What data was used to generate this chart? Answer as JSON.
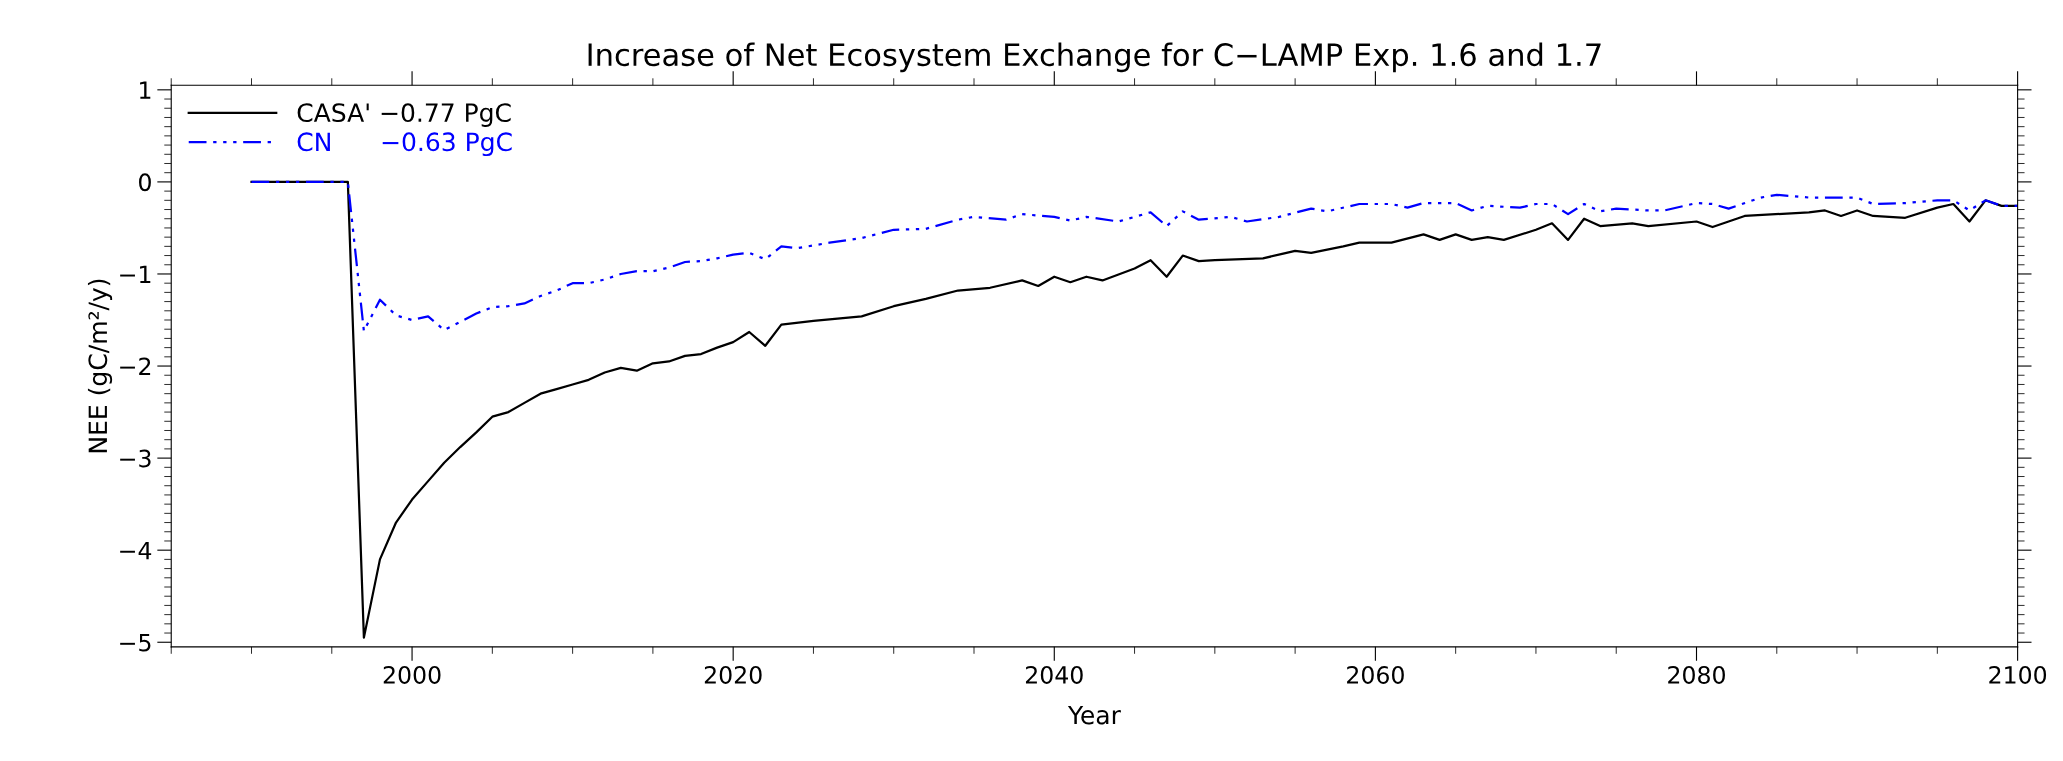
{
  "chart_data": {
    "type": "line",
    "title": "Increase of Net Ecosystem Exchange for C−LAMP Exp. 1.6 and 1.7",
    "xlabel": "Year",
    "ylabel": "NEE (gC/m²/y)",
    "xlim": [
      1985,
      2100
    ],
    "xticks": [
      2000,
      2020,
      2040,
      2060,
      2080,
      2100
    ],
    "ylim": [
      -5.05,
      1.05
    ],
    "yticks": [
      {
        "value": -5,
        "label": "−5"
      },
      {
        "value": -4,
        "label": "−4"
      },
      {
        "value": -3,
        "label": "−3"
      },
      {
        "value": -2,
        "label": "−2"
      },
      {
        "value": -1,
        "label": "−1"
      },
      0,
      1
    ],
    "grid": false,
    "legend": "top left",
    "marker": "none",
    "series": [
      {
        "name": "CASA' −0.77 PgC",
        "color": "#000000",
        "line_style": "solid",
        "x": [
          1990,
          1996,
          1997,
          1998,
          1999,
          2000,
          2001,
          2002,
          2003,
          2004,
          2005,
          2006,
          2007,
          2008,
          2009,
          2010,
          2011,
          2012,
          2013,
          2014,
          2015,
          2016,
          2017,
          2018,
          2019,
          2020,
          2021,
          2022,
          2023,
          2025,
          2028,
          2030,
          2032,
          2034,
          2036,
          2038,
          2039,
          2040,
          2041,
          2042,
          2043,
          2045,
          2046,
          2047,
          2048,
          2049,
          2050,
          2053,
          2055,
          2056,
          2058,
          2059,
          2061,
          2063,
          2064,
          2065,
          2066,
          2067,
          2068,
          2070,
          2071,
          2072,
          2073,
          2074,
          2076,
          2077,
          2080,
          2081,
          2083,
          2087,
          2088,
          2089,
          2090,
          2091,
          2093,
          2095,
          2096,
          2097,
          2098,
          2099,
          2100
        ],
        "values": [
          0,
          0,
          -4.95,
          -4.1,
          -3.7,
          -3.45,
          -3.25,
          -3.05,
          -2.88,
          -2.72,
          -2.55,
          -2.5,
          -2.4,
          -2.3,
          -2.25,
          -2.2,
          -2.15,
          -2.07,
          -2.02,
          -2.05,
          -1.97,
          -1.95,
          -1.89,
          -1.87,
          -1.8,
          -1.74,
          -1.63,
          -1.78,
          -1.55,
          -1.51,
          -1.46,
          -1.35,
          -1.27,
          -1.18,
          -1.15,
          -1.07,
          -1.13,
          -1.03,
          -1.09,
          -1.03,
          -1.07,
          -0.94,
          -0.85,
          -1.03,
          -0.8,
          -0.86,
          -0.85,
          -0.83,
          -0.75,
          -0.77,
          -0.7,
          -0.66,
          -0.66,
          -0.57,
          -0.63,
          -0.57,
          -0.63,
          -0.6,
          -0.63,
          -0.52,
          -0.45,
          -0.63,
          -0.4,
          -0.48,
          -0.45,
          -0.48,
          -0.43,
          -0.49,
          -0.37,
          -0.33,
          -0.31,
          -0.37,
          -0.31,
          -0.37,
          -0.39,
          -0.28,
          -0.24,
          -0.43,
          -0.2,
          -0.26,
          -0.26
        ]
      },
      {
        "name": "CN      −0.63 PgC",
        "color": "#0000ff",
        "line_style": "dashdot",
        "x": [
          1990,
          1996,
          1997,
          1998,
          1999,
          2000,
          2001,
          2002,
          2003,
          2004,
          2005,
          2006,
          2007,
          2008,
          2009,
          2010,
          2011,
          2012,
          2013,
          2014,
          2015,
          2016,
          2017,
          2018,
          2019,
          2020,
          2021,
          2022,
          2023,
          2024,
          2026,
          2028,
          2030,
          2032,
          2034,
          2035,
          2037,
          2038,
          2040,
          2041,
          2042,
          2044,
          2046,
          2047,
          2048,
          2049,
          2051,
          2052,
          2054,
          2056,
          2057,
          2059,
          2061,
          2062,
          2063,
          2065,
          2066,
          2067,
          2069,
          2070,
          2071,
          2072,
          2073,
          2074,
          2075,
          2077,
          2078,
          2080,
          2081,
          2082,
          2084,
          2085,
          2087,
          2088,
          2090,
          2091,
          2093,
          2095,
          2096,
          2097,
          2098,
          2099,
          2100
        ],
        "values": [
          0,
          0,
          -1.62,
          -1.28,
          -1.45,
          -1.5,
          -1.46,
          -1.61,
          -1.52,
          -1.43,
          -1.36,
          -1.35,
          -1.32,
          -1.24,
          -1.18,
          -1.1,
          -1.1,
          -1.06,
          -1.0,
          -0.97,
          -0.97,
          -0.93,
          -0.87,
          -0.86,
          -0.83,
          -0.79,
          -0.77,
          -0.84,
          -0.7,
          -0.72,
          -0.66,
          -0.61,
          -0.52,
          -0.51,
          -0.41,
          -0.38,
          -0.41,
          -0.35,
          -0.38,
          -0.42,
          -0.38,
          -0.43,
          -0.33,
          -0.48,
          -0.32,
          -0.41,
          -0.38,
          -0.43,
          -0.38,
          -0.29,
          -0.32,
          -0.24,
          -0.24,
          -0.28,
          -0.23,
          -0.23,
          -0.31,
          -0.26,
          -0.28,
          -0.24,
          -0.24,
          -0.35,
          -0.24,
          -0.32,
          -0.29,
          -0.31,
          -0.31,
          -0.23,
          -0.24,
          -0.29,
          -0.17,
          -0.14,
          -0.17,
          -0.17,
          -0.17,
          -0.24,
          -0.23,
          -0.2,
          -0.2,
          -0.31,
          -0.2,
          -0.26,
          -0.26
        ]
      }
    ]
  }
}
